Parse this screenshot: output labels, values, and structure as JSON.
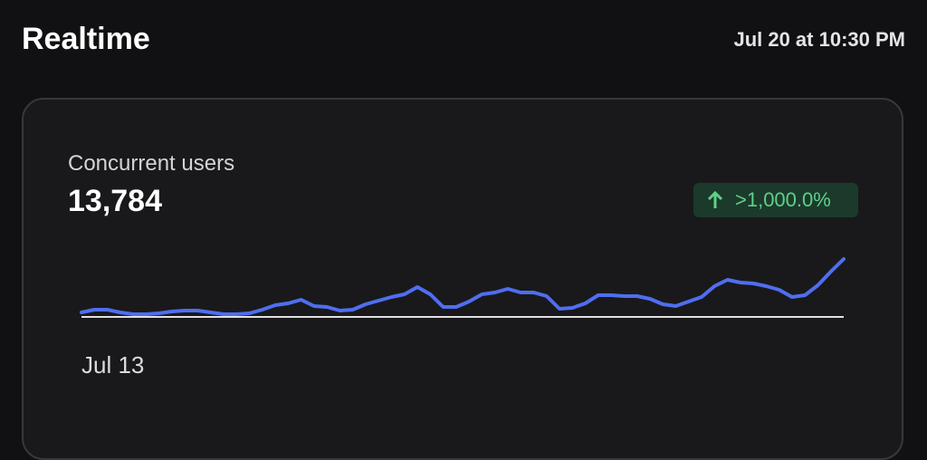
{
  "header": {
    "title": "Realtime",
    "timestamp": "Jul 20 at 10:30 PM"
  },
  "card": {
    "metric_label": "Concurrent users",
    "metric_value": "13,784",
    "change": ">1,000.0%"
  },
  "chart_data": {
    "type": "line",
    "categories": [
      "Jul 13",
      null,
      null,
      null,
      null,
      null,
      null,
      null,
      null,
      null,
      null,
      null,
      null,
      null,
      null,
      null,
      null,
      null,
      null,
      null,
      null,
      null,
      null,
      null,
      null,
      null,
      null,
      null,
      null,
      null,
      null,
      null,
      null,
      null,
      null,
      null,
      null,
      null,
      null,
      null,
      null,
      null,
      null,
      null,
      null,
      null,
      null,
      null,
      null,
      null,
      null,
      null,
      null,
      null,
      null,
      null,
      null,
      null,
      null,
      null
    ],
    "series": [
      {
        "color": "#4f6ef0",
        "values": [
          5,
          8,
          8,
          5,
          3,
          3,
          4,
          6,
          7,
          7,
          5,
          3,
          3,
          4,
          8,
          13,
          15,
          19,
          12,
          11,
          7,
          8,
          14,
          18,
          22,
          25,
          33,
          25,
          11,
          11,
          17,
          25,
          27,
          31,
          27,
          27,
          23,
          9,
          10,
          15,
          24,
          24,
          23,
          23,
          20,
          14,
          12,
          17,
          22,
          34,
          41,
          38,
          37,
          34,
          30,
          22,
          24,
          35,
          50,
          64
        ]
      }
    ],
    "ylim": [
      0,
      70
    ]
  }
}
